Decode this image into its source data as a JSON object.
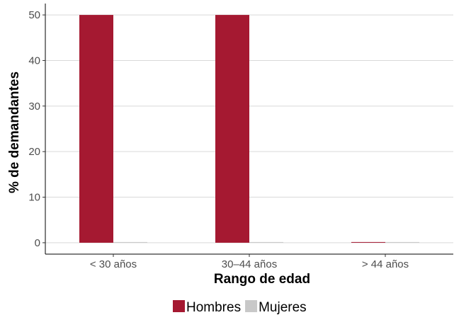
{
  "chart_data": {
    "type": "bar",
    "categories": [
      "< 30 años",
      "30–44 años",
      "> 44 años"
    ],
    "series": [
      {
        "name": "Hombres",
        "values": [
          50,
          50,
          0
        ],
        "color": "#a51931"
      },
      {
        "name": "Mujeres",
        "values": [
          0,
          0,
          0
        ],
        "color": "#c8c8c8"
      }
    ],
    "xlabel": "Rango de edad",
    "ylabel": "% de demandantes",
    "ylim": [
      -2.5,
      52.5
    ],
    "yticks": [
      0,
      10,
      20,
      30,
      40,
      50
    ],
    "grid": "horizontal",
    "legend_position": "bottom"
  }
}
